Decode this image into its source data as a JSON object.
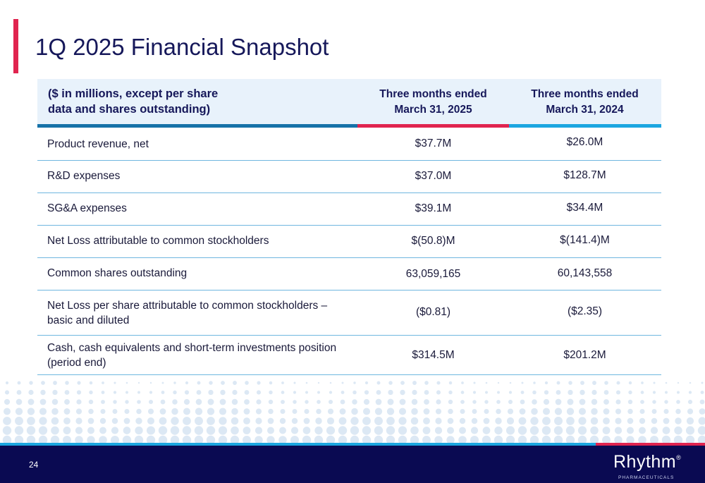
{
  "page_title": "1Q 2025 Financial Snapshot",
  "table": {
    "header_label_line1": "($ in millions, except per share",
    "header_label_line2": "data and shares outstanding)",
    "col1_line1": "Three months ended",
    "col1_line2": "March 31, 2025",
    "col2_line1": "Three months ended",
    "col2_line2": "March 31, 2024",
    "rows": [
      {
        "label": "Product revenue, net",
        "v2025": "$37.7M",
        "v2024": "$26.0M"
      },
      {
        "label": "R&D expenses",
        "v2025": "$37.0M",
        "v2024": "$128.7M"
      },
      {
        "label": "SG&A expenses",
        "v2025": "$39.1M",
        "v2024": "$34.4M"
      },
      {
        "label": "Net Loss attributable to common stockholders",
        "v2025": "$(50.8)M",
        "v2024": "$(141.4)M"
      },
      {
        "label": "Common shares outstanding",
        "v2025": "63,059,165",
        "v2024": "60,143,558"
      },
      {
        "label_line1": "Net Loss per share attributable to common stockholders –",
        "label_line2": "basic and diluted",
        "v2025": "($0.81)",
        "v2024": "($2.35)"
      },
      {
        "label_line1": "Cash, cash equivalents and short-term investments position",
        "label_line2": "(period end)",
        "v2025": "$314.5M",
        "v2024": "$201.2M"
      }
    ]
  },
  "footer": {
    "page_number": "24",
    "logo_name": "Rhythm",
    "logo_reg": "®",
    "logo_sub": "PHARMACEUTICALS"
  },
  "colors": {
    "navy": "#0a0a52",
    "title_navy": "#16185a",
    "accent_red": "#e0244f",
    "accent_blue": "#1ba6e0",
    "accent_dark_blue": "#1672a8",
    "header_bg": "#e8f2fb",
    "dot_pattern": "#dce8f4"
  }
}
